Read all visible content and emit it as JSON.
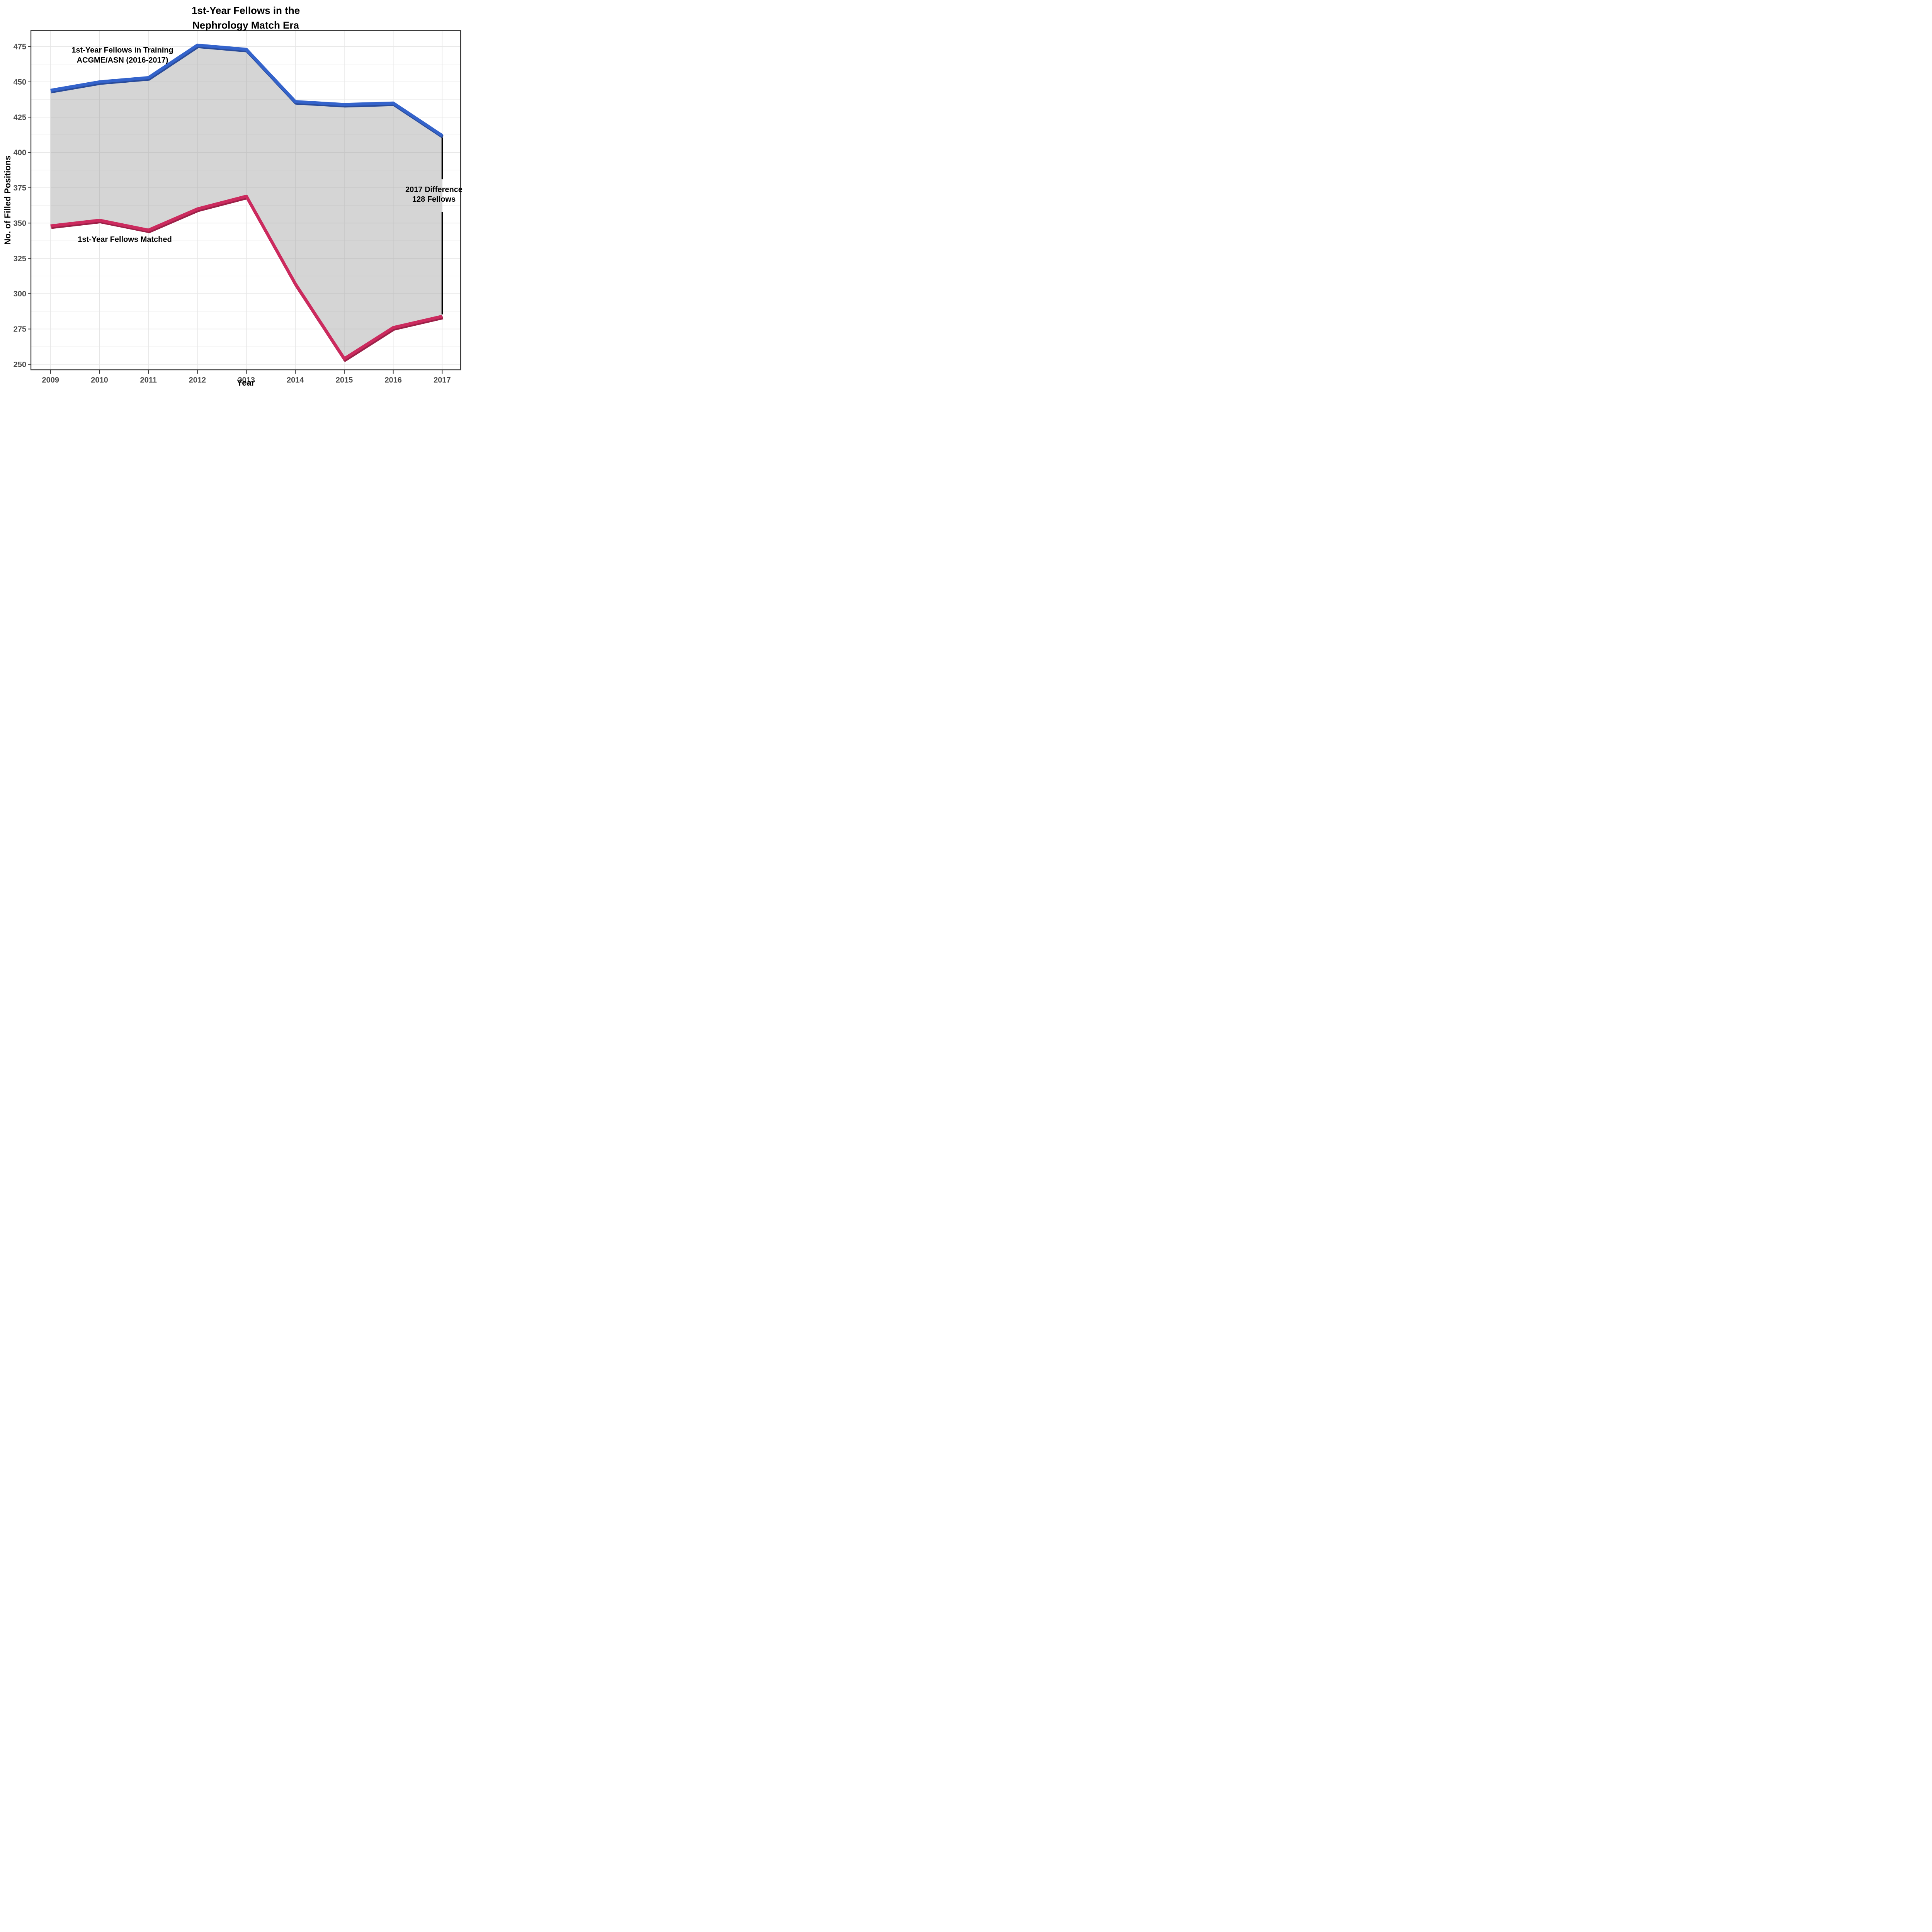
{
  "title": {
    "line1": "1st-Year Fellows in the",
    "line2": "Nephrology Match Era"
  },
  "axes": {
    "x_title": "Year",
    "y_title": "No. of Filled Positions",
    "x_ticks": [
      "2009",
      "2010",
      "2011",
      "2012",
      "2013",
      "2014",
      "2015",
      "2016",
      "2017"
    ],
    "y_ticks": [
      "250",
      "275",
      "300",
      "325",
      "350",
      "375",
      "400",
      "425",
      "450",
      "475"
    ]
  },
  "annotations": {
    "training_line1": "1st-Year Fellows in Training",
    "training_line2": "ACGME/ASN (2016-2017)",
    "matched": "1st-Year Fellows Matched",
    "difference_line1": "2017 Difference",
    "difference_line2": "128 Fellows"
  },
  "colors": {
    "training_line": "#3463CB",
    "training_shadow": "#2A4C9B",
    "matched_line": "#CC2A5E",
    "matched_shadow": "#9B2148",
    "ribbon_fill": "rgba(150,150,150,0.40)",
    "grid_major": "#E6E6E6",
    "grid_minor": "#F2F2F2",
    "panel_border": "#3B3B3B",
    "tick_mark": "#333333",
    "tick_label": "#4A4A4A",
    "bracket": "#000000"
  },
  "chart_data": {
    "type": "line",
    "title": "1st-Year Fellows in the Nephrology Match Era",
    "xlabel": "Year",
    "ylabel": "No. of Filled Positions",
    "x": [
      2009,
      2010,
      2011,
      2012,
      2013,
      2014,
      2015,
      2016,
      2017
    ],
    "series": [
      {
        "name": "1st-Year Fellows in Training ACGME/ASN (2016-2017)",
        "values": [
          444,
          450,
          453,
          476,
          473,
          436,
          434,
          435,
          412
        ]
      },
      {
        "name": "1st-Year Fellows Matched",
        "values": [
          348,
          352,
          345,
          360,
          369,
          307,
          254,
          276,
          284
        ]
      }
    ],
    "ribbon_between_series": true,
    "ylim": [
      243,
      487
    ],
    "yticks": [
      250,
      275,
      300,
      325,
      350,
      375,
      400,
      425,
      450,
      475
    ],
    "minor_yticks": [
      262.5,
      287.5,
      312.5,
      337.5,
      362.5,
      387.5,
      412.5,
      437.5,
      462.5
    ],
    "grid": "major-x, major-y, minor-y",
    "legend_position": "none (direct labels inside plot)",
    "difference_bracket": {
      "x": 2017,
      "top_segment_values": [
        412,
        381
      ],
      "bottom_segment_values": [
        358,
        284
      ],
      "label": "2017 Difference 128 Fellows",
      "difference": 128
    }
  }
}
